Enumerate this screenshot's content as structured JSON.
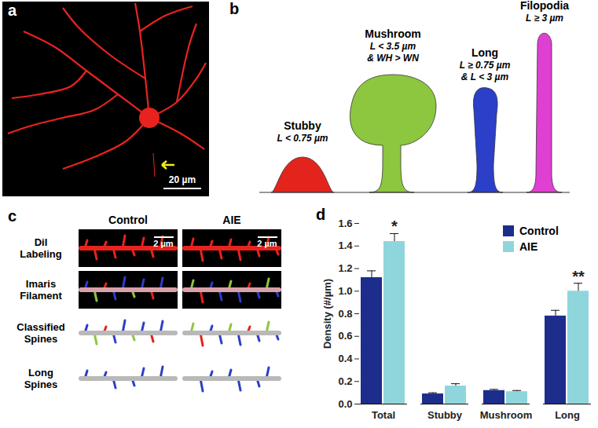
{
  "chart_data": {
    "type": "bar",
    "categories": [
      "Total",
      "Stubby",
      "Mushroom",
      "Long"
    ],
    "series": [
      {
        "name": "Control",
        "color": "#1c2d8c",
        "values": [
          1.12,
          0.09,
          0.12,
          0.78
        ],
        "errors": [
          0.06,
          0.01,
          0.01,
          0.05
        ]
      },
      {
        "name": "AIE",
        "color": "#8fd6dc",
        "values": [
          1.44,
          0.16,
          0.11,
          1.0
        ],
        "errors": [
          0.07,
          0.02,
          0.01,
          0.07
        ]
      }
    ],
    "ylabel": "Density (#/µm)",
    "ylim": [
      0,
      1.6
    ],
    "yticks": [
      {
        "value": 0,
        "label": "0.0"
      },
      {
        "value": 0.2,
        "label": "0.2"
      },
      {
        "value": 0.4,
        "label": "0.4"
      },
      {
        "value": 0.6,
        "label": "0.6"
      },
      {
        "value": 0.8,
        "label": "0.8"
      },
      {
        "value": 1,
        "label": "1.0"
      },
      {
        "value": 1.2,
        "label": "1.2"
      },
      {
        "value": 1.4,
        "label": "1.4"
      },
      {
        "value": 1.6,
        "label": "1.6"
      }
    ],
    "legend": "top-right",
    "annotations": [
      {
        "category": "Total",
        "series": "AIE",
        "text": "*"
      },
      {
        "category": "Long",
        "series": "AIE",
        "text": "**"
      }
    ]
  },
  "figure": {
    "panel_a": {
      "label": "a",
      "scale_bar": "20 µm"
    },
    "panel_b": {
      "label": "b",
      "spine_types": [
        {
          "name": "Stubby",
          "criteria": [
            "L < 0.75 µm"
          ],
          "color": "#e3241c"
        },
        {
          "name": "Mushroom",
          "criteria": [
            "L < 3.5 µm",
            "& WH > WN"
          ],
          "color": "#8dc63f"
        },
        {
          "name": "Long",
          "criteria": [
            "L ≥ 0.75 µm",
            "& L < 3 µm"
          ],
          "color": "#2b3fc8"
        },
        {
          "name": "Filopodia",
          "criteria": [
            "L ≥ 3 µm"
          ],
          "color": "#e040d2"
        }
      ]
    },
    "panel_c": {
      "label": "c",
      "columns": [
        "Control",
        "AIE"
      ],
      "rows": [
        "DiI Labeling",
        "Imaris Filament",
        "Classified Spines",
        "Long Spines"
      ],
      "scale_bar": "2 µm"
    },
    "panel_d": {
      "label": "d"
    }
  }
}
